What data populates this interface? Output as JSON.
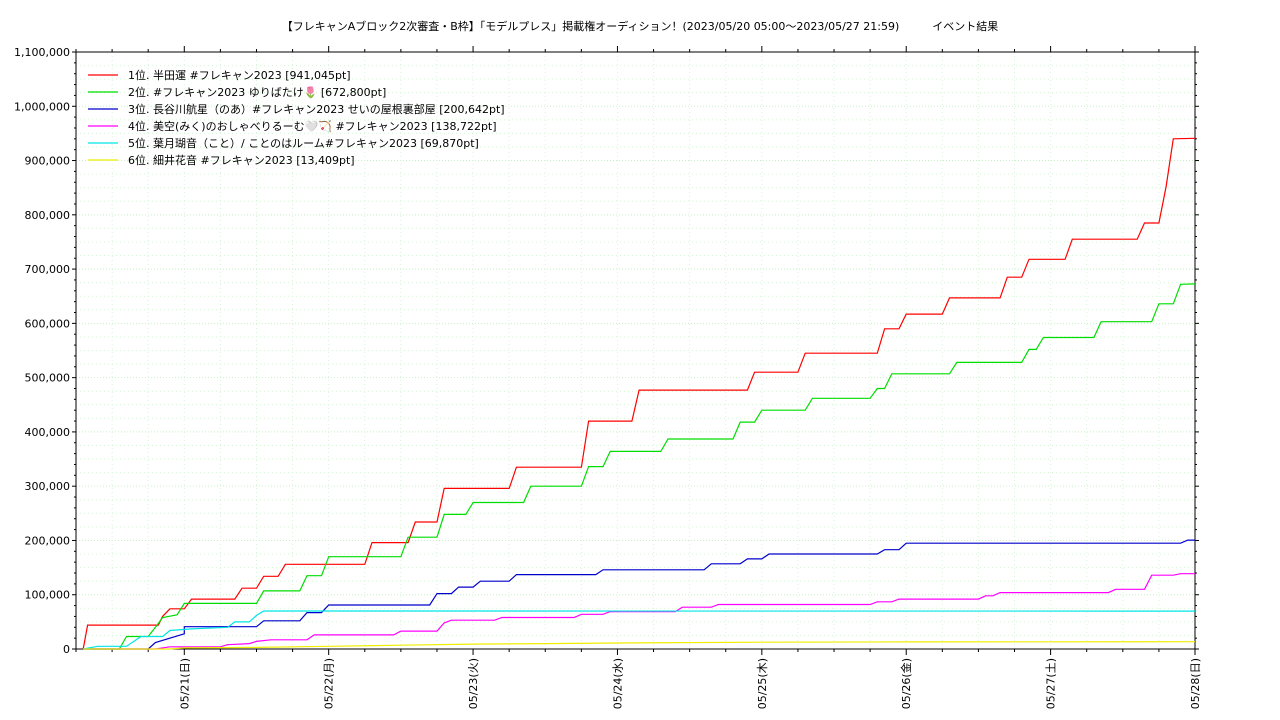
{
  "chart_data": {
    "type": "line",
    "title": "【フレキャンAブロック2次審査・B枠】「モデルプレス」掲載権オーディション！(2023/05/20 05:00〜2023/05/27 21:59)　　　イベント結果",
    "xlabel": "",
    "ylabel": "",
    "x_ticks": [
      "05/21(日)",
      "05/22(月)",
      "05/23(火)",
      "05/24(水)",
      "05/25(木)",
      "05/26(金)",
      "05/27(土)",
      "05/28(日)"
    ],
    "x_range_days": [
      -0.75,
      7.0
    ],
    "ylim": [
      0,
      1100000
    ],
    "y_ticks": [
      "0",
      "100,000",
      "200,000",
      "300,000",
      "400,000",
      "500,000",
      "600,000",
      "700,000",
      "800,000",
      "900,000",
      "1,000,000",
      "1,100,000"
    ],
    "grid": true,
    "legend_position": "top-left",
    "series": [
      {
        "name": "1位. 半田運 #フレキャン2023 [941,045pt]",
        "color": "#ff0000",
        "points": [
          [
            -0.7,
            0
          ],
          [
            -0.67,
            44000
          ],
          [
            -0.18,
            44000
          ],
          [
            -0.15,
            60000
          ],
          [
            -0.1,
            74000
          ],
          [
            0.0,
            74000
          ],
          [
            0.05,
            92000
          ],
          [
            0.35,
            92000
          ],
          [
            0.4,
            112000
          ],
          [
            0.5,
            112000
          ],
          [
            0.55,
            134000
          ],
          [
            0.65,
            134000
          ],
          [
            0.7,
            156000
          ],
          [
            1.25,
            156000
          ],
          [
            1.3,
            196000
          ],
          [
            1.55,
            196000
          ],
          [
            1.6,
            234000
          ],
          [
            1.75,
            234000
          ],
          [
            1.8,
            296000
          ],
          [
            2.25,
            296000
          ],
          [
            2.3,
            335000
          ],
          [
            2.75,
            335000
          ],
          [
            2.8,
            420000
          ],
          [
            3.1,
            420000
          ],
          [
            3.15,
            477000
          ],
          [
            3.9,
            477000
          ],
          [
            3.95,
            510000
          ],
          [
            4.25,
            510000
          ],
          [
            4.3,
            545000
          ],
          [
            4.8,
            545000
          ],
          [
            4.85,
            590000
          ],
          [
            4.95,
            590000
          ],
          [
            5.0,
            617000
          ],
          [
            5.25,
            617000
          ],
          [
            5.3,
            647000
          ],
          [
            5.65,
            647000
          ],
          [
            5.7,
            685000
          ],
          [
            5.8,
            685000
          ],
          [
            5.85,
            718000
          ],
          [
            6.1,
            718000
          ],
          [
            6.15,
            755000
          ],
          [
            6.6,
            755000
          ],
          [
            6.65,
            785000
          ],
          [
            6.75,
            785000
          ],
          [
            6.8,
            852000
          ],
          [
            6.85,
            940000
          ],
          [
            7.0,
            941045
          ]
        ]
      },
      {
        "name": "2位. #フレキャン2023 ゆりばたけ🌷 [672,800pt]",
        "color": "#00dd00",
        "points": [
          [
            -0.7,
            0
          ],
          [
            -0.45,
            0
          ],
          [
            -0.4,
            23000
          ],
          [
            -0.25,
            23000
          ],
          [
            -0.2,
            40000
          ],
          [
            -0.15,
            58000
          ],
          [
            -0.05,
            63000
          ],
          [
            0.0,
            84000
          ],
          [
            0.5,
            84000
          ],
          [
            0.55,
            107000
          ],
          [
            0.8,
            107000
          ],
          [
            0.85,
            135000
          ],
          [
            0.95,
            135000
          ],
          [
            1.0,
            170000
          ],
          [
            1.5,
            170000
          ],
          [
            1.55,
            206000
          ],
          [
            1.75,
            206000
          ],
          [
            1.8,
            248000
          ],
          [
            1.95,
            248000
          ],
          [
            2.0,
            270000
          ],
          [
            2.35,
            270000
          ],
          [
            2.4,
            300000
          ],
          [
            2.75,
            300000
          ],
          [
            2.8,
            336000
          ],
          [
            2.9,
            336000
          ],
          [
            2.95,
            364000
          ],
          [
            3.3,
            364000
          ],
          [
            3.35,
            387000
          ],
          [
            3.8,
            387000
          ],
          [
            3.85,
            418000
          ],
          [
            3.95,
            418000
          ],
          [
            4.0,
            440000
          ],
          [
            4.3,
            440000
          ],
          [
            4.35,
            462000
          ],
          [
            4.75,
            462000
          ],
          [
            4.8,
            480000
          ],
          [
            4.85,
            480000
          ],
          [
            4.9,
            507000
          ],
          [
            5.3,
            507000
          ],
          [
            5.35,
            528000
          ],
          [
            5.8,
            528000
          ],
          [
            5.85,
            552000
          ],
          [
            5.9,
            552000
          ],
          [
            5.95,
            574000
          ],
          [
            6.3,
            574000
          ],
          [
            6.35,
            603000
          ],
          [
            6.7,
            603000
          ],
          [
            6.75,
            636000
          ],
          [
            6.85,
            636000
          ],
          [
            6.9,
            672000
          ],
          [
            7.0,
            672800
          ]
        ]
      },
      {
        "name": "3位. 長谷川航星（のあ）#フレキャン2023 せいの屋根裏部屋 [200,642pt]",
        "color": "#0000cc",
        "points": [
          [
            -0.7,
            0
          ],
          [
            -0.25,
            0
          ],
          [
            -0.2,
            12000
          ],
          [
            0.0,
            28000
          ],
          [
            0.0,
            41000
          ],
          [
            0.5,
            41000
          ],
          [
            0.55,
            52000
          ],
          [
            0.8,
            52000
          ],
          [
            0.85,
            67000
          ],
          [
            0.95,
            67000
          ],
          [
            1.0,
            81000
          ],
          [
            1.7,
            81000
          ],
          [
            1.75,
            102000
          ],
          [
            1.85,
            102000
          ],
          [
            1.9,
            114000
          ],
          [
            2.0,
            114000
          ],
          [
            2.05,
            125000
          ],
          [
            2.25,
            125000
          ],
          [
            2.3,
            137000
          ],
          [
            2.85,
            137000
          ],
          [
            2.9,
            146000
          ],
          [
            3.6,
            146000
          ],
          [
            3.65,
            157000
          ],
          [
            3.85,
            157000
          ],
          [
            3.9,
            166000
          ],
          [
            4.0,
            166000
          ],
          [
            4.05,
            175000
          ],
          [
            4.8,
            175000
          ],
          [
            4.85,
            183000
          ],
          [
            4.95,
            183000
          ],
          [
            5.0,
            195000
          ],
          [
            6.9,
            195000
          ],
          [
            6.95,
            200642
          ],
          [
            7.0,
            200642
          ]
        ]
      },
      {
        "name": "4位. 美空(みく)のおしゃべりるーむ🤍🏹 #フレキャン2023 [138,722pt]",
        "color": "#ff00ff",
        "points": [
          [
            -0.7,
            0
          ],
          [
            -0.2,
            0
          ],
          [
            -0.1,
            4000
          ],
          [
            0.25,
            4000
          ],
          [
            0.3,
            8000
          ],
          [
            0.45,
            10000
          ],
          [
            0.5,
            14000
          ],
          [
            0.6,
            17000
          ],
          [
            0.85,
            17000
          ],
          [
            0.9,
            26000
          ],
          [
            1.45,
            26000
          ],
          [
            1.5,
            33000
          ],
          [
            1.75,
            33000
          ],
          [
            1.8,
            48000
          ],
          [
            1.85,
            53000
          ],
          [
            2.15,
            53000
          ],
          [
            2.2,
            58000
          ],
          [
            2.7,
            58000
          ],
          [
            2.75,
            64000
          ],
          [
            2.9,
            64000
          ],
          [
            2.95,
            69000
          ],
          [
            3.4,
            69000
          ],
          [
            3.45,
            77000
          ],
          [
            3.65,
            77000
          ],
          [
            3.7,
            82000
          ],
          [
            4.75,
            82000
          ],
          [
            4.8,
            87000
          ],
          [
            4.9,
            87000
          ],
          [
            4.95,
            92000
          ],
          [
            5.5,
            92000
          ],
          [
            5.55,
            98000
          ],
          [
            5.6,
            98000
          ],
          [
            5.65,
            104000
          ],
          [
            6.4,
            104000
          ],
          [
            6.45,
            110000
          ],
          [
            6.65,
            110000
          ],
          [
            6.7,
            136000
          ],
          [
            6.85,
            136000
          ],
          [
            6.9,
            138722
          ],
          [
            7.0,
            138722
          ]
        ]
      },
      {
        "name": "5位. 葉月瑚音（こと）/ ことのはルーム#フレキャン2023 [69,870pt]",
        "color": "#00e5e5",
        "points": [
          [
            -0.7,
            0
          ],
          [
            -0.6,
            5000
          ],
          [
            -0.4,
            5000
          ],
          [
            -0.3,
            23000
          ],
          [
            -0.15,
            23000
          ],
          [
            -0.1,
            34000
          ],
          [
            0.05,
            37000
          ],
          [
            0.3,
            40000
          ],
          [
            0.35,
            50000
          ],
          [
            0.45,
            50000
          ],
          [
            0.5,
            62000
          ],
          [
            0.55,
            70000
          ],
          [
            7.0,
            69870
          ]
        ]
      },
      {
        "name": "6位. 細井花音 #フレキャン2023 [13,409pt]",
        "color": "#eeee00",
        "points": [
          [
            -0.7,
            0
          ],
          [
            -0.1,
            0
          ],
          [
            0.0,
            2000
          ],
          [
            0.5,
            3000
          ],
          [
            1.0,
            5000
          ],
          [
            1.5,
            7000
          ],
          [
            2.0,
            9000
          ],
          [
            2.5,
            10000
          ],
          [
            3.0,
            11000
          ],
          [
            4.0,
            12500
          ],
          [
            5.0,
            13000
          ],
          [
            6.0,
            13300
          ],
          [
            7.0,
            13409
          ]
        ]
      }
    ]
  }
}
